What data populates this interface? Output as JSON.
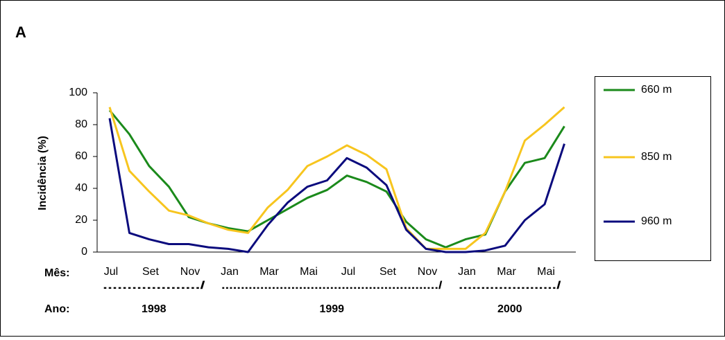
{
  "chart_data": {
    "type": "line",
    "panel_label": "A",
    "y_label": "Incidência (%)",
    "x_label": "Mês:",
    "year_label": "Ano:",
    "categories": [
      "Jul",
      null,
      "Set",
      null,
      "Nov",
      null,
      "Jan",
      null,
      "Mar",
      null,
      "Mai",
      null,
      "Jul",
      null,
      "Set",
      null,
      "Nov",
      null,
      "Jan",
      null,
      "Mar",
      null,
      "Mai",
      null
    ],
    "years": [
      {
        "label": "1998",
        "dots": "..................../",
        "from": 0,
        "to": 5
      },
      {
        "label": "1999",
        "dots": "......................................................../",
        "from": 6,
        "to": 17
      },
      {
        "label": "2000",
        "dots": "....................../",
        "from": 18,
        "to": 23
      }
    ],
    "series": [
      {
        "name": "660 m",
        "color": "#1b8a1b",
        "values": [
          89,
          74,
          54,
          41,
          22,
          18,
          15,
          13,
          20,
          27,
          34,
          39,
          48,
          44,
          38,
          19,
          8,
          3,
          8,
          11,
          38,
          56,
          59,
          79
        ]
      },
      {
        "name": "850 m",
        "color": "#f7c51e",
        "values": [
          91,
          51,
          38,
          26,
          23,
          18,
          14,
          12,
          28,
          39,
          54,
          60,
          67,
          61,
          52,
          15,
          2,
          2,
          2,
          12,
          38,
          70,
          80,
          91
        ]
      },
      {
        "name": "960 m",
        "color": "#0b0b7d",
        "values": [
          84,
          12,
          8,
          5,
          5,
          3,
          2,
          0,
          17,
          31,
          41,
          45,
          59,
          53,
          42,
          14,
          2,
          0,
          0,
          1,
          4,
          20,
          30,
          68
        ]
      }
    ],
    "ylim": [
      0,
      100
    ],
    "yticks": [
      0,
      20,
      40,
      60,
      80,
      100
    ],
    "legend": "right"
  }
}
